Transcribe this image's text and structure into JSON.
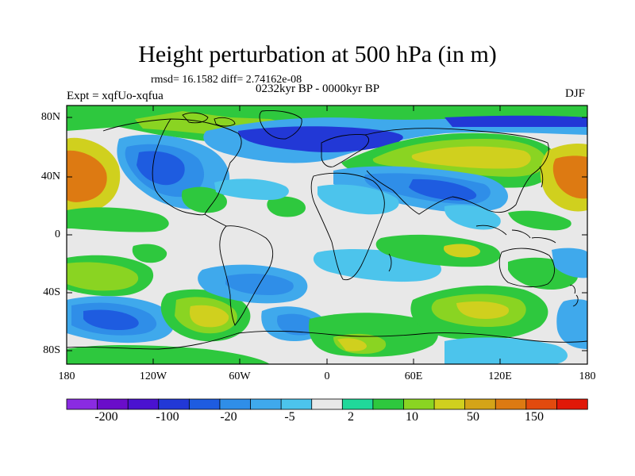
{
  "figure": {
    "title": "Height perturbation at 500 hPa (in m)",
    "stats": "rmsd= 16.1582 diff= 2.74162e-08",
    "period": "0232kyr BP - 0000kyr BP",
    "experiment": "Expt = xqfUo-xqfua",
    "season": "DJF"
  },
  "axes": {
    "lat_labels": [
      "80N",
      "40N",
      "0",
      "40S",
      "80S"
    ],
    "lon_labels": [
      "180",
      "120W",
      "60W",
      "0",
      "60E",
      "120E",
      "180"
    ]
  },
  "colorbar": {
    "colors": [
      "#8a2be2",
      "#6a0dca",
      "#4a12d0",
      "#2238d6",
      "#1e5ce0",
      "#2f8ee8",
      "#3fa9ec",
      "#4cc4ec",
      "#e8e8e8",
      "#20d89a",
      "#2ec83e",
      "#8ad422",
      "#d0d01e",
      "#d4a418",
      "#dd7a12",
      "#e24a0e",
      "#e01808"
    ],
    "labels": [
      "-200",
      "-100",
      "-20",
      "-5",
      "2",
      "10",
      "50",
      "150"
    ]
  },
  "colors": {
    "background": "#e8e8e8",
    "coast": "#000000"
  }
}
